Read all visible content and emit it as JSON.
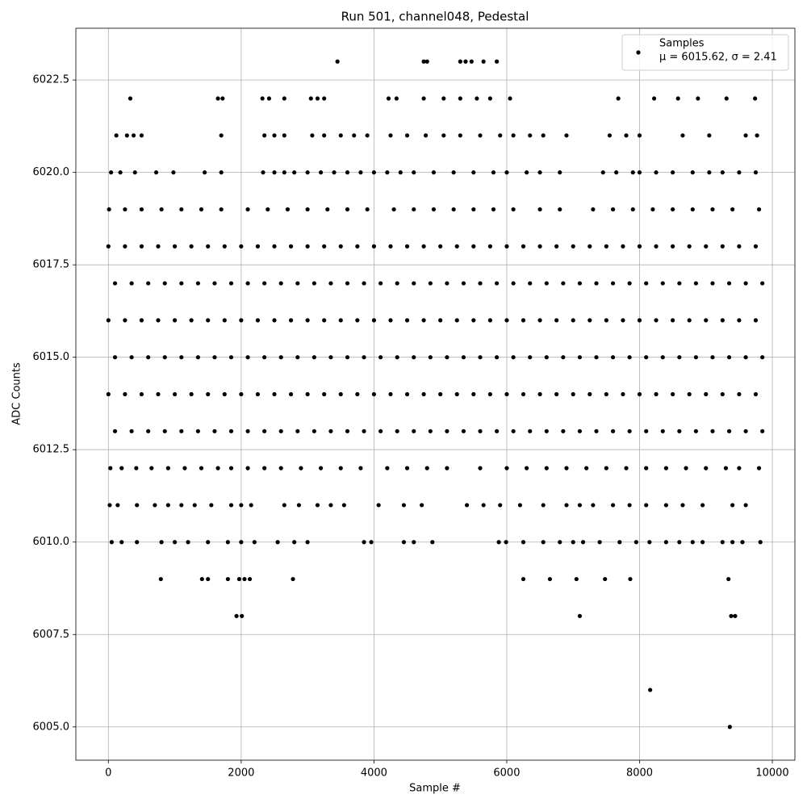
{
  "chart_data": {
    "type": "scatter",
    "title": "Run 501, channel048, Pedestal",
    "x_label": "Sample #",
    "y_label": "ADC Counts",
    "xlim": [
      -490,
      10340
    ],
    "ylim": [
      6004.1,
      6023.9
    ],
    "xticks": [
      0,
      2000,
      4000,
      6000,
      8000,
      10000
    ],
    "yticks": [
      {
        "value": 6005,
        "label": "6005.0"
      },
      6007.5,
      {
        "value": 6010,
        "label": "6010.0"
      },
      6012.5,
      {
        "value": 6015,
        "label": "6015.0"
      },
      6017.5,
      {
        "value": 6020,
        "label": "6020.0"
      },
      6022.5
    ],
    "grid": true,
    "legend": "upper right",
    "annotation": "μ = 6015.62, σ = 2.41",
    "x": [
      0,
      250,
      500,
      750,
      1000,
      1250,
      1500,
      1750,
      2000,
      2250,
      2500,
      2750,
      3000,
      3250,
      3500,
      3750,
      4000,
      4250,
      4500,
      4750,
      5000,
      5250,
      5500,
      5750,
      6000,
      6250,
      6500,
      6750,
      7000,
      7250,
      7500,
      7750,
      8000,
      8250,
      8500,
      8750,
      9000,
      9250,
      9500,
      9750,
      100,
      350,
      600,
      850,
      1100,
      1350,
      1600,
      1850,
      2100,
      2350,
      2600,
      2850,
      3100,
      3350,
      3600,
      3850,
      4100,
      4350,
      4600,
      4850,
      5100,
      5350,
      5600,
      5850,
      6100,
      6350,
      6600,
      6850,
      7100,
      7350,
      7600,
      7850,
      8100,
      8350,
      8600,
      8850,
      9100,
      9350,
      9600,
      9850,
      0,
      250,
      500,
      750,
      1000,
      1250,
      1500,
      1750,
      2000,
      2250,
      2500,
      2750,
      3000,
      3250,
      3500,
      3750,
      4000,
      4250,
      4500,
      4750,
      5000,
      5250,
      5500,
      5750,
      6000,
      6250,
      6500,
      6750,
      7000,
      7250,
      7500,
      7750,
      8000,
      8250,
      8500,
      8750,
      9000,
      9250,
      9500,
      9750,
      100,
      350,
      600,
      850,
      1100,
      1350,
      1600,
      1850,
      2100,
      2350,
      2600,
      2850,
      3100,
      3350,
      3600,
      3850,
      4100,
      4350,
      4600,
      4850,
      5100,
      5350,
      5600,
      5850,
      6100,
      6350,
      6600,
      6850,
      7100,
      7350,
      7600,
      7850,
      8100,
      8350,
      8600,
      8850,
      9100,
      9350,
      9600,
      9850,
      0,
      250,
      500,
      750,
      1000,
      1250,
      1500,
      1750,
      2000,
      2250,
      2500,
      2750,
      3000,
      3250,
      3500,
      3750,
      4000,
      4250,
      4500,
      4750,
      5000,
      5250,
      5500,
      5750,
      6000,
      6250,
      6500,
      6750,
      7000,
      7250,
      7500,
      7750,
      8000,
      8250,
      8500,
      8750,
      9000,
      9250,
      9500,
      9750,
      100,
      350,
      600,
      850,
      1100,
      1350,
      1600,
      1850,
      2100,
      2350,
      2600,
      2850,
      3100,
      3350,
      3600,
      3850,
      4100,
      4350,
      4600,
      4850,
      5100,
      5350,
      5600,
      5850,
      6100,
      6350,
      6600,
      6850,
      7100,
      7350,
      7600,
      7850,
      8100,
      8350,
      8600,
      8850,
      9100,
      9350,
      9600,
      9850,
      30,
      200,
      420,
      650,
      900,
      1150,
      1400,
      1650,
      1850,
      2100,
      2350,
      2600,
      2900,
      3200,
      3500,
      3800,
      4200,
      4500,
      4800,
      5100,
      5600,
      6000,
      6300,
      6600,
      6900,
      7200,
      7500,
      7800,
      8100,
      8400,
      8700,
      9000,
      9300,
      9500,
      9800,
      10,
      250,
      500,
      800,
      1100,
      1400,
      1700,
      2100,
      2400,
      2700,
      3000,
      3300,
      3600,
      3900,
      4300,
      4600,
      4900,
      5200,
      5500,
      5800,
      6100,
      6500,
      6800,
      7300,
      7600,
      7900,
      8200,
      8500,
      8800,
      9100,
      9400,
      9800,
      40,
      180,
      400,
      720,
      980,
      1450,
      1700,
      2330,
      2500,
      2650,
      2800,
      3000,
      3200,
      3400,
      3600,
      3800,
      4000,
      4200,
      4400,
      4600,
      4900,
      5200,
      5500,
      5800,
      6000,
      6300,
      6500,
      6800,
      7450,
      7650,
      7900,
      8000,
      8250,
      8500,
      8800,
      9050,
      9250,
      9500,
      9750,
      120,
      280,
      380,
      500,
      1700,
      2350,
      2500,
      2650,
      3070,
      3250,
      3500,
      3700,
      3900,
      4250,
      4500,
      4780,
      5050,
      5300,
      5600,
      5900,
      6100,
      6350,
      6550,
      6900,
      7550,
      7800,
      8000,
      8650,
      9050,
      9600,
      9770,
      330,
      1650,
      1720,
      2320,
      2420,
      2650,
      3050,
      3150,
      3250,
      4220,
      4340,
      4750,
      5050,
      5300,
      5550,
      5750,
      6050,
      7680,
      8220,
      8580,
      8880,
      9310,
      9740,
      3450,
      4750,
      4800,
      5300,
      5380,
      5470,
      5650,
      5850,
      20,
      140,
      430,
      700,
      900,
      1100,
      1300,
      1550,
      1850,
      2000,
      2150,
      2650,
      2870,
      3150,
      3350,
      3550,
      4070,
      4450,
      4720,
      5400,
      5650,
      5900,
      6200,
      6550,
      6900,
      7100,
      7300,
      7600,
      7850,
      8100,
      8400,
      8650,
      8950,
      9400,
      9600,
      50,
      200,
      430,
      800,
      1000,
      1200,
      1500,
      1800,
      2000,
      2200,
      2550,
      2800,
      3000,
      3850,
      3960,
      4450,
      4600,
      4880,
      5880,
      5990,
      6250,
      6550,
      6800,
      7000,
      7150,
      7400,
      7700,
      7950,
      8150,
      8400,
      8600,
      8800,
      8950,
      9250,
      9400,
      9550,
      9820,
      790,
      1410,
      1500,
      1800,
      1970,
      2050,
      2130,
      2780,
      6250,
      6650,
      7050,
      7480,
      7860,
      9340,
      1930,
      2010,
      7100,
      9380,
      9440,
      8160,
      9360
    ],
    "series": [
      {
        "name": "Samples",
        "color": "#000000",
        "values": [
          6018,
          6018,
          6018,
          6018,
          6018,
          6018,
          6018,
          6018,
          6018,
          6018,
          6018,
          6018,
          6018,
          6018,
          6018,
          6018,
          6018,
          6018,
          6018,
          6018,
          6018,
          6018,
          6018,
          6018,
          6018,
          6018,
          6018,
          6018,
          6018,
          6018,
          6018,
          6018,
          6018,
          6018,
          6018,
          6018,
          6018,
          6018,
          6018,
          6018,
          6017,
          6017,
          6017,
          6017,
          6017,
          6017,
          6017,
          6017,
          6017,
          6017,
          6017,
          6017,
          6017,
          6017,
          6017,
          6017,
          6017,
          6017,
          6017,
          6017,
          6017,
          6017,
          6017,
          6017,
          6017,
          6017,
          6017,
          6017,
          6017,
          6017,
          6017,
          6017,
          6017,
          6017,
          6017,
          6017,
          6017,
          6017,
          6017,
          6017,
          6016,
          6016,
          6016,
          6016,
          6016,
          6016,
          6016,
          6016,
          6016,
          6016,
          6016,
          6016,
          6016,
          6016,
          6016,
          6016,
          6016,
          6016,
          6016,
          6016,
          6016,
          6016,
          6016,
          6016,
          6016,
          6016,
          6016,
          6016,
          6016,
          6016,
          6016,
          6016,
          6016,
          6016,
          6016,
          6016,
          6016,
          6016,
          6016,
          6016,
          6015,
          6015,
          6015,
          6015,
          6015,
          6015,
          6015,
          6015,
          6015,
          6015,
          6015,
          6015,
          6015,
          6015,
          6015,
          6015,
          6015,
          6015,
          6015,
          6015,
          6015,
          6015,
          6015,
          6015,
          6015,
          6015,
          6015,
          6015,
          6015,
          6015,
          6015,
          6015,
          6015,
          6015,
          6015,
          6015,
          6015,
          6015,
          6015,
          6015,
          6014,
          6014,
          6014,
          6014,
          6014,
          6014,
          6014,
          6014,
          6014,
          6014,
          6014,
          6014,
          6014,
          6014,
          6014,
          6014,
          6014,
          6014,
          6014,
          6014,
          6014,
          6014,
          6014,
          6014,
          6014,
          6014,
          6014,
          6014,
          6014,
          6014,
          6014,
          6014,
          6014,
          6014,
          6014,
          6014,
          6014,
          6014,
          6014,
          6014,
          6013,
          6013,
          6013,
          6013,
          6013,
          6013,
          6013,
          6013,
          6013,
          6013,
          6013,
          6013,
          6013,
          6013,
          6013,
          6013,
          6013,
          6013,
          6013,
          6013,
          6013,
          6013,
          6013,
          6013,
          6013,
          6013,
          6013,
          6013,
          6013,
          6013,
          6013,
          6013,
          6013,
          6013,
          6013,
          6013,
          6013,
          6013,
          6013,
          6013,
          6012,
          6012,
          6012,
          6012,
          6012,
          6012,
          6012,
          6012,
          6012,
          6012,
          6012,
          6012,
          6012,
          6012,
          6012,
          6012,
          6012,
          6012,
          6012,
          6012,
          6012,
          6012,
          6012,
          6012,
          6012,
          6012,
          6012,
          6012,
          6012,
          6012,
          6012,
          6012,
          6012,
          6012,
          6012,
          6019,
          6019,
          6019,
          6019,
          6019,
          6019,
          6019,
          6019,
          6019,
          6019,
          6019,
          6019,
          6019,
          6019,
          6019,
          6019,
          6019,
          6019,
          6019,
          6019,
          6019,
          6019,
          6019,
          6019,
          6019,
          6019,
          6019,
          6019,
          6019,
          6019,
          6019,
          6019,
          6020,
          6020,
          6020,
          6020,
          6020,
          6020,
          6020,
          6020,
          6020,
          6020,
          6020,
          6020,
          6020,
          6020,
          6020,
          6020,
          6020,
          6020,
          6020,
          6020,
          6020,
          6020,
          6020,
          6020,
          6020,
          6020,
          6020,
          6020,
          6020,
          6020,
          6020,
          6020,
          6020,
          6020,
          6020,
          6020,
          6020,
          6020,
          6020,
          6021,
          6021,
          6021,
          6021,
          6021,
          6021,
          6021,
          6021,
          6021,
          6021,
          6021,
          6021,
          6021,
          6021,
          6021,
          6021,
          6021,
          6021,
          6021,
          6021,
          6021,
          6021,
          6021,
          6021,
          6021,
          6021,
          6021,
          6021,
          6021,
          6021,
          6021,
          6022,
          6022,
          6022,
          6022,
          6022,
          6022,
          6022,
          6022,
          6022,
          6022,
          6022,
          6022,
          6022,
          6022,
          6022,
          6022,
          6022,
          6022,
          6022,
          6022,
          6022,
          6022,
          6022,
          6023,
          6023,
          6023,
          6023,
          6023,
          6023,
          6023,
          6023,
          6011,
          6011,
          6011,
          6011,
          6011,
          6011,
          6011,
          6011,
          6011,
          6011,
          6011,
          6011,
          6011,
          6011,
          6011,
          6011,
          6011,
          6011,
          6011,
          6011,
          6011,
          6011,
          6011,
          6011,
          6011,
          6011,
          6011,
          6011,
          6011,
          6011,
          6011,
          6011,
          6011,
          6011,
          6011,
          6010,
          6010,
          6010,
          6010,
          6010,
          6010,
          6010,
          6010,
          6010,
          6010,
          6010,
          6010,
          6010,
          6010,
          6010,
          6010,
          6010,
          6010,
          6010,
          6010,
          6010,
          6010,
          6010,
          6010,
          6010,
          6010,
          6010,
          6010,
          6010,
          6010,
          6010,
          6010,
          6010,
          6010,
          6010,
          6010,
          6010,
          6009,
          6009,
          6009,
          6009,
          6009,
          6009,
          6009,
          6009,
          6009,
          6009,
          6009,
          6009,
          6009,
          6009,
          6008,
          6008,
          6008,
          6008,
          6008,
          6006,
          6005
        ]
      }
    ]
  }
}
